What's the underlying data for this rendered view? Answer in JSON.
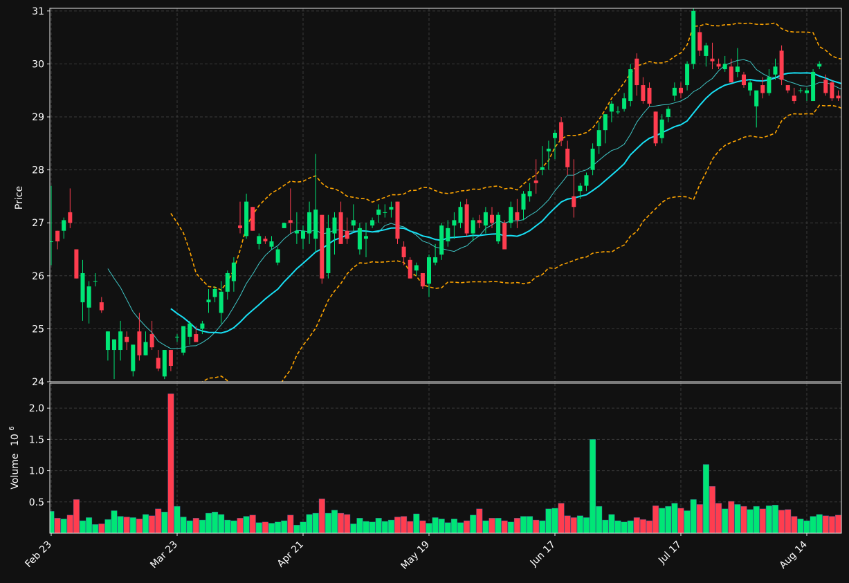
{
  "chart_data": {
    "type": "candlestick",
    "price_panel": {
      "ylabel": "Price",
      "ylim": [
        24,
        31.05
      ],
      "yticks": [
        24,
        25,
        26,
        27,
        28,
        29,
        30,
        31
      ]
    },
    "volume_panel": {
      "ylabel": "Volume",
      "unit_label": "10",
      "unit_exp": "6",
      "ylim": [
        0,
        2.4
      ],
      "yticks": [
        "0.5",
        "1.0",
        "1.5",
        "2.0"
      ],
      "tick_values": [
        0.5,
        1.0,
        1.5,
        2.0
      ]
    },
    "x_ticks": [
      {
        "index": 0,
        "label": "Feb 23"
      },
      {
        "index": 20,
        "label": "Mar 23"
      },
      {
        "index": 40,
        "label": "Apr 21"
      },
      {
        "index": 60,
        "label": "May 19"
      },
      {
        "index": 80,
        "label": "Jun 17"
      },
      {
        "index": 100,
        "label": "Jul 17"
      },
      {
        "index": 120,
        "label": "Aug 14"
      }
    ],
    "grid": true,
    "colors": {
      "background": "#111111",
      "grid": "#3a3a3a",
      "frame": "#e6e6e6",
      "up": "#00e676",
      "down": "#ff3d4f",
      "ma_fast": "#40c8c8",
      "ma_slow": "#18e0f5",
      "bollinger": "#ffa500"
    },
    "ohlcv": [
      [
        26.65,
        27.7,
        26.2,
        26.65,
        0.35
      ],
      [
        26.85,
        26.85,
        26.5,
        26.65,
        0.24
      ],
      [
        26.85,
        27.1,
        26.7,
        27.05,
        0.23
      ],
      [
        27.2,
        27.65,
        26.9,
        27.0,
        0.29
      ],
      [
        26.5,
        26.5,
        25.95,
        25.95,
        0.54
      ],
      [
        25.5,
        26.3,
        25.15,
        26.05,
        0.2
      ],
      [
        25.4,
        25.9,
        25.1,
        25.8,
        0.25
      ],
      [
        25.9,
        26.05,
        25.8,
        25.9,
        0.14
      ],
      [
        25.5,
        25.6,
        25.3,
        25.35,
        0.15
      ],
      [
        24.6,
        24.95,
        24.4,
        24.95,
        0.22
      ],
      [
        24.6,
        24.8,
        24.05,
        24.8,
        0.36
      ],
      [
        24.6,
        25.15,
        24.4,
        24.95,
        0.27
      ],
      [
        24.85,
        24.95,
        24.6,
        24.75,
        0.26
      ],
      [
        24.2,
        24.7,
        24.1,
        24.7,
        0.25
      ],
      [
        24.95,
        25.3,
        24.4,
        24.5,
        0.23
      ],
      [
        24.5,
        24.95,
        24.5,
        24.75,
        0.3
      ],
      [
        24.9,
        25.15,
        24.6,
        24.65,
        0.28
      ],
      [
        24.45,
        24.6,
        24.2,
        24.25,
        0.39
      ],
      [
        24.1,
        24.6,
        24.05,
        24.6,
        0.34
      ],
      [
        24.6,
        24.6,
        24.2,
        24.3,
        2.23
      ],
      [
        24.85,
        24.9,
        24.75,
        24.85,
        0.43
      ],
      [
        24.55,
        25.05,
        24.5,
        25.05,
        0.26
      ],
      [
        24.85,
        25.15,
        24.7,
        25.1,
        0.2
      ],
      [
        24.9,
        25.05,
        24.75,
        24.75,
        0.24
      ],
      [
        25.0,
        25.15,
        24.9,
        25.1,
        0.21
      ],
      [
        25.5,
        25.75,
        25.3,
        25.55,
        0.32
      ],
      [
        25.6,
        25.8,
        25.5,
        25.75,
        0.34
      ],
      [
        25.3,
        25.9,
        25.1,
        25.7,
        0.3
      ],
      [
        25.7,
        26.1,
        25.55,
        26.05,
        0.21
      ],
      [
        25.9,
        26.35,
        25.7,
        26.25,
        0.2
      ],
      [
        26.95,
        27.4,
        26.8,
        26.9,
        0.24
      ],
      [
        26.75,
        27.55,
        26.7,
        27.4,
        0.27
      ],
      [
        27.3,
        27.3,
        26.85,
        26.85,
        0.29
      ],
      [
        26.6,
        26.8,
        26.5,
        26.75,
        0.17
      ],
      [
        26.7,
        26.75,
        26.6,
        26.65,
        0.18
      ],
      [
        26.55,
        26.75,
        26.5,
        26.65,
        0.16
      ],
      [
        26.25,
        26.55,
        26.2,
        26.5,
        0.18
      ],
      [
        26.9,
        27.0,
        26.9,
        27.0,
        0.2
      ],
      [
        27.05,
        27.65,
        26.8,
        27.0,
        0.29
      ],
      [
        26.8,
        27.2,
        26.6,
        26.85,
        0.13
      ],
      [
        26.7,
        26.95,
        26.5,
        26.85,
        0.18
      ],
      [
        26.8,
        27.4,
        26.6,
        27.2,
        0.3
      ],
      [
        26.7,
        28.3,
        26.45,
        27.25,
        0.32
      ],
      [
        27.15,
        27.15,
        25.85,
        25.95,
        0.55
      ],
      [
        26.05,
        27.15,
        25.95,
        26.9,
        0.32
      ],
      [
        26.8,
        27.2,
        26.4,
        27.1,
        0.37
      ],
      [
        27.2,
        27.4,
        26.6,
        26.6,
        0.32
      ],
      [
        26.85,
        27.1,
        26.6,
        26.7,
        0.3
      ],
      [
        26.95,
        27.35,
        26.85,
        27.05,
        0.15
      ],
      [
        26.5,
        27.0,
        26.4,
        26.9,
        0.24
      ],
      [
        26.7,
        27.0,
        26.35,
        26.75,
        0.19
      ],
      [
        26.95,
        27.1,
        26.9,
        27.05,
        0.18
      ],
      [
        27.15,
        27.35,
        27.0,
        27.25,
        0.24
      ],
      [
        27.2,
        27.35,
        27.1,
        27.2,
        0.19
      ],
      [
        27.25,
        27.4,
        27.1,
        27.3,
        0.21
      ],
      [
        27.4,
        27.4,
        26.6,
        26.7,
        0.26
      ],
      [
        26.55,
        26.65,
        26.2,
        26.35,
        0.27
      ],
      [
        26.3,
        26.35,
        25.95,
        25.95,
        0.19
      ],
      [
        26.1,
        26.25,
        26.0,
        26.2,
        0.31
      ],
      [
        26.05,
        26.05,
        25.75,
        25.8,
        0.2
      ],
      [
        25.85,
        26.4,
        25.6,
        26.35,
        0.16
      ],
      [
        26.25,
        26.6,
        26.2,
        26.35,
        0.25
      ],
      [
        26.4,
        27.0,
        26.3,
        26.95,
        0.23
      ],
      [
        26.65,
        27.05,
        26.55,
        26.9,
        0.17
      ],
      [
        26.95,
        27.2,
        26.7,
        27.05,
        0.23
      ],
      [
        27.0,
        27.4,
        26.9,
        27.3,
        0.17
      ],
      [
        27.35,
        27.45,
        26.75,
        26.8,
        0.2
      ],
      [
        26.8,
        27.1,
        26.65,
        27.05,
        0.29
      ],
      [
        27.05,
        27.15,
        26.9,
        27.0,
        0.39
      ],
      [
        26.95,
        27.3,
        26.8,
        27.2,
        0.2
      ],
      [
        27.15,
        27.3,
        26.9,
        27.0,
        0.24
      ],
      [
        26.65,
        27.2,
        26.6,
        27.15,
        0.24
      ],
      [
        27.0,
        27.05,
        26.5,
        26.5,
        0.2
      ],
      [
        27.0,
        27.4,
        26.9,
        27.3,
        0.18
      ],
      [
        27.2,
        27.45,
        26.9,
        27.05,
        0.24
      ],
      [
        27.25,
        27.6,
        27.05,
        27.55,
        0.27
      ],
      [
        27.5,
        27.75,
        27.4,
        27.6,
        0.27
      ],
      [
        27.8,
        28.2,
        27.55,
        27.75,
        0.21
      ],
      [
        28.0,
        28.45,
        27.9,
        28.05,
        0.2
      ],
      [
        28.35,
        28.55,
        28.0,
        28.4,
        0.39
      ],
      [
        28.6,
        28.75,
        28.2,
        28.7,
        0.4
      ],
      [
        28.9,
        29.0,
        28.45,
        28.55,
        0.48
      ],
      [
        28.4,
        28.55,
        27.9,
        28.05,
        0.28
      ],
      [
        27.5,
        28.2,
        27.1,
        27.3,
        0.25
      ],
      [
        27.6,
        27.75,
        27.45,
        27.7,
        0.28
      ],
      [
        27.7,
        27.95,
        27.6,
        27.9,
        0.25
      ],
      [
        28.0,
        28.5,
        27.9,
        28.4,
        1.5
      ],
      [
        28.45,
        28.9,
        28.3,
        28.75,
        0.43
      ],
      [
        28.75,
        29.0,
        28.5,
        29.05,
        0.21
      ],
      [
        29.1,
        29.3,
        28.9,
        29.25,
        0.3
      ],
      [
        29.1,
        29.2,
        29.05,
        29.1,
        0.2
      ],
      [
        29.15,
        29.45,
        29.1,
        29.35,
        0.18
      ],
      [
        29.3,
        30.0,
        29.2,
        29.9,
        0.2
      ],
      [
        30.1,
        30.2,
        29.4,
        29.6,
        0.25
      ],
      [
        29.6,
        29.75,
        29.25,
        29.3,
        0.22
      ],
      [
        29.55,
        29.65,
        29.2,
        29.25,
        0.2
      ],
      [
        29.1,
        29.1,
        28.45,
        28.5,
        0.44
      ],
      [
        28.6,
        29.05,
        28.5,
        28.95,
        0.4
      ],
      [
        29.0,
        29.2,
        28.9,
        29.15,
        0.43
      ],
      [
        29.4,
        29.65,
        29.3,
        29.55,
        0.48
      ],
      [
        29.55,
        29.65,
        29.35,
        29.45,
        0.4
      ],
      [
        29.6,
        30.05,
        29.5,
        30.0,
        0.36
      ],
      [
        30.0,
        31.1,
        29.9,
        31.0,
        0.54
      ],
      [
        30.6,
        30.7,
        30.15,
        30.25,
        0.46
      ],
      [
        30.15,
        30.4,
        29.95,
        30.35,
        1.1
      ],
      [
        30.1,
        30.4,
        29.9,
        30.05,
        0.75
      ],
      [
        30.0,
        30.1,
        29.9,
        29.95,
        0.48
      ],
      [
        29.9,
        30.15,
        29.85,
        30.0,
        0.39
      ],
      [
        29.95,
        30.1,
        29.65,
        29.65,
        0.51
      ],
      [
        29.85,
        30.3,
        29.75,
        29.95,
        0.46
      ],
      [
        29.8,
        29.85,
        29.55,
        29.6,
        0.43
      ],
      [
        29.5,
        29.7,
        29.4,
        29.65,
        0.38
      ],
      [
        29.2,
        29.45,
        28.8,
        29.5,
        0.43
      ],
      [
        29.6,
        29.75,
        29.35,
        29.45,
        0.39
      ],
      [
        29.45,
        29.9,
        29.4,
        29.75,
        0.44
      ],
      [
        29.8,
        30.1,
        29.7,
        29.95,
        0.45
      ],
      [
        30.25,
        30.35,
        29.6,
        29.7,
        0.37
      ],
      [
        29.6,
        29.6,
        29.45,
        29.5,
        0.38
      ],
      [
        29.4,
        29.55,
        29.25,
        29.3,
        0.27
      ],
      [
        29.5,
        29.55,
        29.45,
        29.5,
        0.23
      ],
      [
        29.45,
        29.55,
        29.3,
        29.5,
        0.2
      ],
      [
        29.3,
        29.9,
        29.3,
        29.85,
        0.27
      ],
      [
        29.95,
        30.05,
        29.9,
        30.0,
        0.3
      ],
      [
        29.7,
        29.8,
        29.4,
        29.45,
        0.28
      ],
      [
        29.65,
        29.7,
        29.3,
        29.35,
        0.27
      ],
      [
        29.4,
        29.5,
        29.3,
        29.35,
        0.29
      ],
      [
        29.45,
        29.45,
        29.0,
        29.2,
        0.31
      ],
      [
        29.2,
        29.2,
        28.75,
        28.8,
        0.27
      ],
      [
        29.15,
        29.35,
        28.6,
        29.15,
        0.31
      ]
    ],
    "series": [
      {
        "kind": "sma_fast",
        "period": 10
      },
      {
        "kind": "sma_slow",
        "period": 20
      },
      {
        "kind": "bollinger_upper",
        "period": 20,
        "k": 2
      },
      {
        "kind": "bollinger_lower",
        "period": 20,
        "k": 2
      }
    ]
  }
}
